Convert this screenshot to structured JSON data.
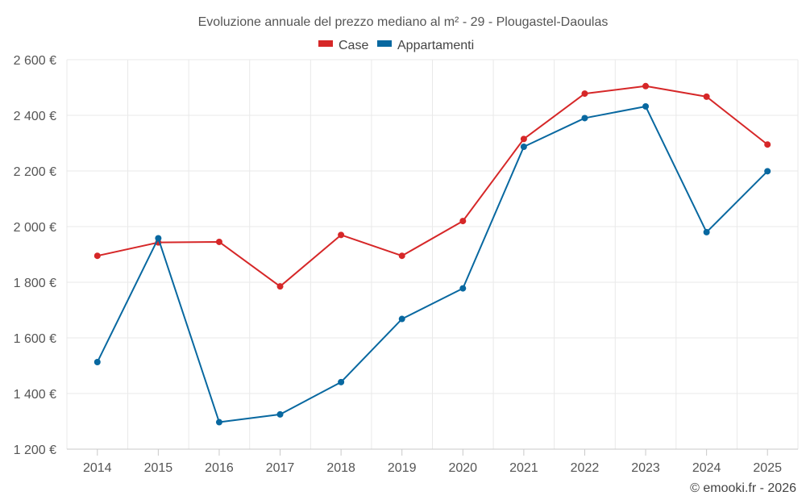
{
  "chart_data": {
    "type": "line",
    "title": "Evoluzione annuale del prezzo mediano al m² - 29 - Plougastel-Daoulas",
    "xlabel": "",
    "ylabel": "",
    "categories": [
      "2014",
      "2015",
      "2016",
      "2017",
      "2018",
      "2019",
      "2020",
      "2021",
      "2022",
      "2023",
      "2024",
      "2025"
    ],
    "ylim": [
      1200,
      2600
    ],
    "yticks": [
      1200,
      1400,
      1600,
      1800,
      2000,
      2200,
      2400,
      2600
    ],
    "ytick_labels": [
      "1 200 €",
      "1 400 €",
      "1 600 €",
      "1 800 €",
      "2 000 €",
      "2 200 €",
      "2 400 €",
      "2 600 €"
    ],
    "grid": true,
    "legend_position": "top-center",
    "series": [
      {
        "name": "Case",
        "color": "#d62728",
        "values": [
          1895,
          1943,
          1945,
          1785,
          1970,
          1895,
          2020,
          2315,
          2478,
          2505,
          2467,
          2295
        ]
      },
      {
        "name": "Appartamenti",
        "color": "#0868a0",
        "values": [
          1513,
          1958,
          1297,
          1325,
          1441,
          1668,
          1778,
          2287,
          2390,
          2432,
          1980,
          2199
        ]
      }
    ],
    "credit": "© emooki.fr - 2026"
  }
}
